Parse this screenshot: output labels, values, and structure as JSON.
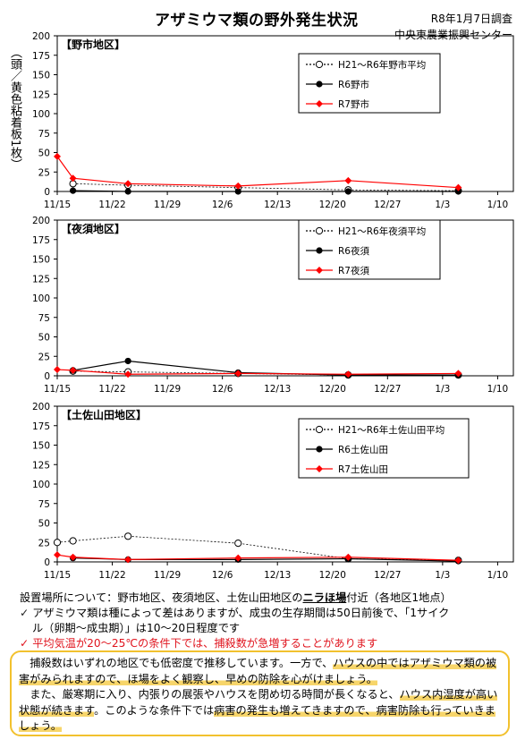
{
  "header": {
    "title": "アザミウマ類の野外発生状況",
    "date": "R8年1月7日調査",
    "org": "中央東農業振興センター"
  },
  "ylabel": "（頭／黄色粘着板1枚）",
  "x_ticks": [
    "11/15",
    "11/22",
    "11/29",
    "12/6",
    "12/13",
    "12/20",
    "12/27",
    "1/3",
    "1/10"
  ],
  "y_ticks": [
    "0",
    "25",
    "50",
    "75",
    "100",
    "125",
    "150",
    "175",
    "200"
  ],
  "chart_data": [
    {
      "type": "line",
      "panel_label": "【野市地区】",
      "xlim": [
        "11/15",
        "1/12"
      ],
      "ylim": [
        0,
        200
      ],
      "legend_position": "top-right",
      "series": [
        {
          "name": "H21～R6年野市平均",
          "color": "#000000",
          "style": "dotted-open-circle",
          "x": [
            "11/17",
            "11/24",
            "12/8",
            "12/22",
            "1/5"
          ],
          "y": [
            10,
            8,
            5,
            2,
            1
          ]
        },
        {
          "name": "R6野市",
          "color": "#000000",
          "style": "solid-filled-circle",
          "x": [
            "11/17",
            "11/24",
            "12/8",
            "12/22",
            "1/5"
          ],
          "y": [
            1,
            0,
            0,
            0,
            0
          ]
        },
        {
          "name": "R7野市",
          "color": "#ff0000",
          "style": "solid-diamond",
          "x": [
            "11/15",
            "11/17",
            "11/24",
            "12/8",
            "12/22",
            "1/5"
          ],
          "y": [
            45,
            17,
            10,
            7,
            14,
            5
          ]
        }
      ]
    },
    {
      "type": "line",
      "panel_label": "【夜須地区】",
      "xlim": [
        "11/15",
        "1/12"
      ],
      "ylim": [
        0,
        200
      ],
      "legend_position": "top-right",
      "series": [
        {
          "name": "H21～R6年夜須平均",
          "color": "#000000",
          "style": "dotted-open-circle",
          "x": [
            "11/17",
            "11/24",
            "12/8",
            "12/22",
            "1/5"
          ],
          "y": [
            6,
            5,
            3,
            1,
            1
          ]
        },
        {
          "name": "R6夜須",
          "color": "#000000",
          "style": "solid-filled-circle",
          "x": [
            "11/17",
            "11/24",
            "12/8",
            "12/22",
            "1/5"
          ],
          "y": [
            7,
            19,
            4,
            1,
            1
          ]
        },
        {
          "name": "R7夜須",
          "color": "#ff0000",
          "style": "solid-diamond",
          "x": [
            "11/15",
            "11/17",
            "11/24",
            "12/8",
            "12/22",
            "1/5"
          ],
          "y": [
            8,
            7,
            2,
            3,
            2,
            3
          ]
        }
      ]
    },
    {
      "type": "line",
      "panel_label": "【土佐山田地区】",
      "xlim": [
        "11/15",
        "1/12"
      ],
      "ylim": [
        0,
        200
      ],
      "legend_position": "top-right",
      "series": [
        {
          "name": "H21～R6年土佐山田平均",
          "color": "#000000",
          "style": "dotted-open-circle",
          "x": [
            "11/15",
            "11/17",
            "11/24",
            "12/8",
            "12/22",
            "1/5"
          ],
          "y": [
            25,
            27,
            33,
            24,
            4,
            2
          ]
        },
        {
          "name": "R6土佐山田",
          "color": "#000000",
          "style": "solid-filled-circle",
          "x": [
            "11/17",
            "11/24",
            "12/8",
            "12/22",
            "1/5"
          ],
          "y": [
            5,
            3,
            3,
            4,
            1
          ]
        },
        {
          "name": "R7土佐山田",
          "color": "#ff0000",
          "style": "solid-diamond",
          "x": [
            "11/15",
            "11/17",
            "11/24",
            "12/8",
            "12/22",
            "1/5"
          ],
          "y": [
            9,
            6,
            3,
            5,
            6,
            2
          ]
        }
      ]
    }
  ],
  "notes": {
    "placement_pre": "設置場所について：野市地区、夜須地区、土佐山田地区の",
    "placement_emph": "ニラほ場",
    "placement_post": "付近（各地区1地点）",
    "bullet1_a": "アザミウマ類は種によって差はありますが、成虫の生存期間は50日前後で、「1サイク",
    "bullet1_b": "ル（卵期～成虫期）」は10～20日程度です",
    "bullet2": "平均気温が20～25℃の条件下では、捕殺数が急増することがあります",
    "check": "✓"
  },
  "box": {
    "p1_a": "捕殺数はいずれの地区でも低密度で推移しています。一方で、",
    "p1_hl1": "ハウスの中ではアザミウ",
    "p1_hl2": "マ類の被害がみられますので、ほ場をよく観察し、早めの防除を心がけましょう。",
    "p2_a": "また、厳寒期に入り、内張りの展張やハウスを閉め切る時間が長くなると、",
    "p2_hl1": "ハウス内湿度",
    "p2_hl2": "が高い状態が続きます",
    "p2_b": "。このような条件下では",
    "p2_hl3": "病害の発生も増えてきますので、病害防除",
    "p2_hl4": "も行っていきましょう。"
  }
}
